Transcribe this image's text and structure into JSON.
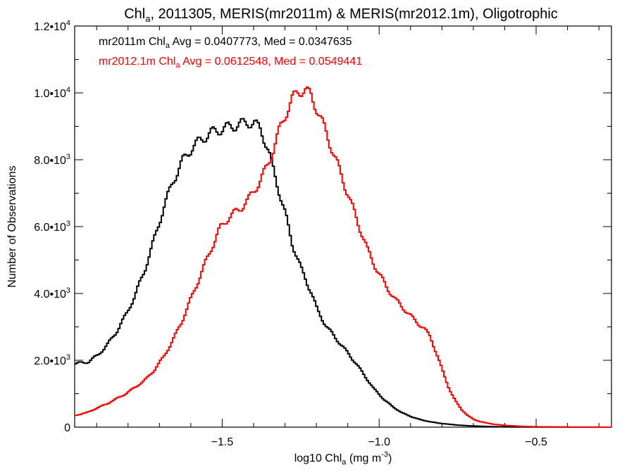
{
  "chart_data": {
    "type": "line",
    "title": {
      "prefix": "Chl",
      "sub": "a",
      "suffix": ", 2011305, MERIS(mr2011m) & MERIS(mr2012.1m), Oligotrophic"
    },
    "xlabel": {
      "prefix": "log10 Chl",
      "sub": "a",
      "suffix": " (mg m",
      "sup": "-3",
      "end": ")"
    },
    "ylabel": "Number of Observations",
    "xlim": [
      -1.97,
      -0.26
    ],
    "ylim": [
      0,
      12000
    ],
    "x_ticks": [
      {
        "value": -1.5,
        "label": "−1.5"
      },
      {
        "value": -1.0,
        "label": "−1.0"
      },
      {
        "value": -0.5,
        "label": "−0.5"
      }
    ],
    "y_ticks": [
      {
        "value": 0,
        "mant": "0",
        "exp": ""
      },
      {
        "value": 2000,
        "mant": "2.0•10",
        "exp": "3"
      },
      {
        "value": 4000,
        "mant": "4.0•10",
        "exp": "3"
      },
      {
        "value": 6000,
        "mant": "6.0•10",
        "exp": "3"
      },
      {
        "value": 8000,
        "mant": "8.0•10",
        "exp": "3"
      },
      {
        "value": 10000,
        "mant": "1.0•10",
        "exp": "4"
      },
      {
        "value": 12000,
        "mant": "1.2•10",
        "exp": "4"
      }
    ],
    "grid": false,
    "legend_position": "top-left",
    "series": [
      {
        "key": "black",
        "color": "#000000",
        "label": {
          "prefix": "mr2011m Chl",
          "sub": "a",
          "suffix": " Avg = 0.0407773, Med = 0.0347635"
        },
        "x": [
          -1.97,
          -1.93,
          -1.9,
          -1.87,
          -1.84,
          -1.81,
          -1.78,
          -1.75,
          -1.72,
          -1.69,
          -1.66,
          -1.63,
          -1.6,
          -1.57,
          -1.54,
          -1.51,
          -1.48,
          -1.45,
          -1.42,
          -1.4,
          -1.38,
          -1.36,
          -1.34,
          -1.32,
          -1.3,
          -1.28,
          -1.25,
          -1.22,
          -1.2,
          -1.17,
          -1.14,
          -1.11,
          -1.08,
          -1.05,
          -1.02,
          -0.99,
          -0.96,
          -0.93,
          -0.9,
          -0.87,
          -0.84,
          -0.81,
          -0.78,
          -0.75,
          -0.72,
          -0.69,
          -0.66,
          -0.63,
          -0.6,
          -0.55,
          -0.5,
          -0.45,
          -0.4,
          -0.35,
          -0.3,
          -0.26
        ],
        "values": [
          1900,
          1950,
          2150,
          2450,
          2850,
          3350,
          3950,
          4700,
          5600,
          6550,
          7350,
          7950,
          8350,
          8600,
          8800,
          8900,
          8980,
          9050,
          9120,
          9080,
          8900,
          8400,
          7700,
          7000,
          6300,
          5500,
          4700,
          4050,
          3500,
          3000,
          2650,
          2300,
          1950,
          1550,
          1150,
          850,
          610,
          430,
          310,
          220,
          160,
          115,
          85,
          60,
          42,
          30,
          20,
          14,
          9,
          5,
          3,
          2,
          1,
          0,
          0,
          0
        ]
      },
      {
        "key": "red",
        "color": "#ff0000",
        "label": {
          "prefix": "mr2012.1m Chl",
          "sub": "a",
          "suffix": " Avg = 0.0612548, Med = 0.0549441"
        },
        "x": [
          -1.97,
          -1.93,
          -1.9,
          -1.87,
          -1.84,
          -1.81,
          -1.78,
          -1.75,
          -1.72,
          -1.69,
          -1.66,
          -1.63,
          -1.6,
          -1.57,
          -1.54,
          -1.51,
          -1.48,
          -1.45,
          -1.42,
          -1.4,
          -1.38,
          -1.36,
          -1.34,
          -1.32,
          -1.3,
          -1.28,
          -1.26,
          -1.24,
          -1.22,
          -1.2,
          -1.18,
          -1.16,
          -1.13,
          -1.1,
          -1.07,
          -1.04,
          -1.01,
          -0.98,
          -0.95,
          -0.92,
          -0.89,
          -0.86,
          -0.84,
          -0.82,
          -0.8,
          -0.78,
          -0.76,
          -0.74,
          -0.72,
          -0.7,
          -0.67,
          -0.64,
          -0.6,
          -0.55,
          -0.5,
          -0.45,
          -0.4,
          -0.35,
          -0.3,
          -0.26
        ],
        "values": [
          350,
          450,
          580,
          700,
          850,
          1000,
          1200,
          1400,
          1700,
          2100,
          2600,
          3200,
          3900,
          4600,
          5300,
          5950,
          6300,
          6500,
          6800,
          7100,
          7400,
          7800,
          8300,
          8900,
          9400,
          9800,
          10050,
          10100,
          9900,
          9500,
          9000,
          8500,
          7700,
          6900,
          6100,
          5300,
          4700,
          4200,
          3800,
          3500,
          3200,
          2950,
          2700,
          2200,
          1650,
          1150,
          780,
          520,
          340,
          220,
          140,
          90,
          50,
          25,
          12,
          6,
          3,
          2,
          1,
          0
        ]
      }
    ]
  }
}
